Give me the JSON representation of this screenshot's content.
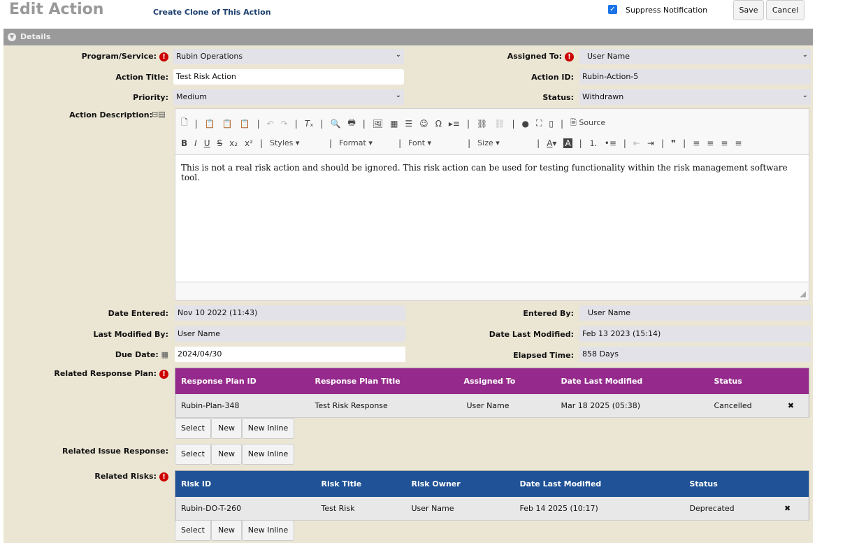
{
  "header": {
    "title": "Edit Action",
    "clone_link": "Create Clone of This Action",
    "suppress_label": "Suppress Notification",
    "suppress_checked": true,
    "save": "Save",
    "cancel": "Cancel"
  },
  "section": {
    "title": "Details"
  },
  "fields": {
    "program_label": "Program/Service:",
    "program_value": "Rubin Operations",
    "assigned_label": "Assigned To:",
    "assigned_value": "User Name",
    "title_label": "Action Title:",
    "title_value": "Test Risk Action",
    "id_label": "Action ID:",
    "id_value": "Rubin-Action-5",
    "priority_label": "Priority:",
    "priority_value": "Medium",
    "status_label": "Status:",
    "status_value": "Withdrawn",
    "desc_label": "Action Description:",
    "date_entered_label": "Date Entered:",
    "date_entered_value": "Nov 10 2022 (11:43)",
    "entered_by_label": "Entered By:",
    "entered_by_value": "User Name",
    "last_mod_by_label": "Last Modified By:",
    "last_mod_by_value": "User Name",
    "date_last_mod_label": "Date Last Modified:",
    "date_last_mod_value": "Feb 13 2023 (15:14)",
    "due_label": "Due Date:",
    "due_value": "2024/04/30",
    "elapsed_label": "Elapsed Time:",
    "elapsed_value": "858 Days"
  },
  "editor": {
    "source": "Source",
    "styles": "Styles",
    "format": "Format",
    "font": "Font",
    "size": "Size",
    "content": "This is not a real risk action and should be ignored. This risk action can be used for testing functionality within the risk management software tool."
  },
  "response_plan": {
    "label": "Related Response Plan:",
    "color": "#952a8c",
    "headers": [
      "Response Plan ID",
      "Response Plan Title",
      "Assigned To",
      "Date Last Modified",
      "Status"
    ],
    "rows": [
      [
        "Rubin-Plan-348",
        "Test Risk Response",
        "User Name",
        "Mar 18 2025 (05:38)",
        "Cancelled"
      ]
    ]
  },
  "issue_response": {
    "label": "Related Issue Response:"
  },
  "risks": {
    "label": "Related Risks:",
    "color": "#1f5296",
    "headers": [
      "Risk ID",
      "Risk Title",
      "Risk Owner",
      "Date Last Modified",
      "Status"
    ],
    "rows": [
      [
        "Rubin-DO-T-260",
        "Test Risk",
        "User Name",
        "Feb 14 2025 (10:17)",
        "Deprecated"
      ]
    ]
  },
  "buttons": {
    "select": "Select",
    "new": "New",
    "new_inline": "New Inline"
  }
}
